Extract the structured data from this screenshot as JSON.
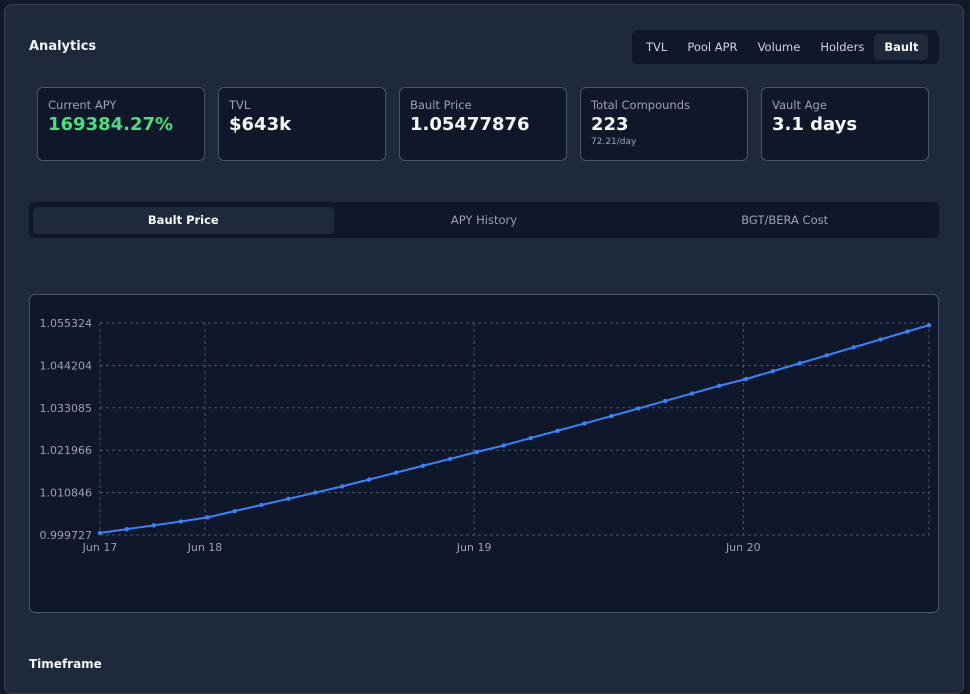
{
  "header": {
    "title": "Analytics",
    "tabs": [
      "TVL",
      "Pool APR",
      "Volume",
      "Holders",
      "Bault"
    ],
    "active_tab": 4
  },
  "stats": [
    {
      "label": "Current APY",
      "value": "169384.27%",
      "color": "#4ade80"
    },
    {
      "label": "TVL",
      "value": "$643k"
    },
    {
      "label": "Bault Price",
      "value": "1.05477876"
    },
    {
      "label": "Total Compounds",
      "value": "223",
      "sub": "72.21/day"
    },
    {
      "label": "Vault Age",
      "value": "3.1 days"
    }
  ],
  "chart_tabs": {
    "items": [
      "Bault Price",
      "APY History",
      "BGT/BERA Cost"
    ],
    "active": 0
  },
  "chart_data": {
    "type": "line",
    "color": "#3b82f6",
    "grid": true,
    "x": [
      17.61,
      17.71,
      17.81,
      17.91,
      18.01,
      18.11,
      18.21,
      18.31,
      18.41,
      18.51,
      18.61,
      18.71,
      18.81,
      18.91,
      19.01,
      19.11,
      19.21,
      19.31,
      19.41,
      19.51,
      19.61,
      19.71,
      19.81,
      19.91,
      20.01,
      20.11,
      20.21,
      20.31,
      20.41,
      20.51,
      20.61,
      20.69
    ],
    "values": [
      1.00025,
      1.00126,
      1.00227,
      1.00328,
      1.00436,
      1.00598,
      1.0076,
      1.00922,
      1.01084,
      1.01248,
      1.01428,
      1.01608,
      1.01788,
      1.01968,
      1.02149,
      1.02322,
      1.02514,
      1.02706,
      1.02898,
      1.03092,
      1.0329,
      1.03488,
      1.03686,
      1.03884,
      1.04061,
      1.04269,
      1.04477,
      1.04685,
      1.04893,
      1.05101,
      1.05309,
      1.05475
    ],
    "xlim": [
      17.61,
      20.69
    ],
    "xticks": [
      {
        "value": 17.61,
        "label": "Jun 17"
      },
      {
        "value": 18,
        "label": "Jun 18"
      },
      {
        "value": 19,
        "label": "Jun 19"
      },
      {
        "value": 20,
        "label": "Jun 20"
      }
    ],
    "ylim": [
      0.999727,
      1.055324
    ],
    "yticks": [
      0.999727,
      1.010846,
      1.021966,
      1.033085,
      1.044204,
      1.055324
    ]
  },
  "footer": {
    "title": "Timeframe"
  }
}
